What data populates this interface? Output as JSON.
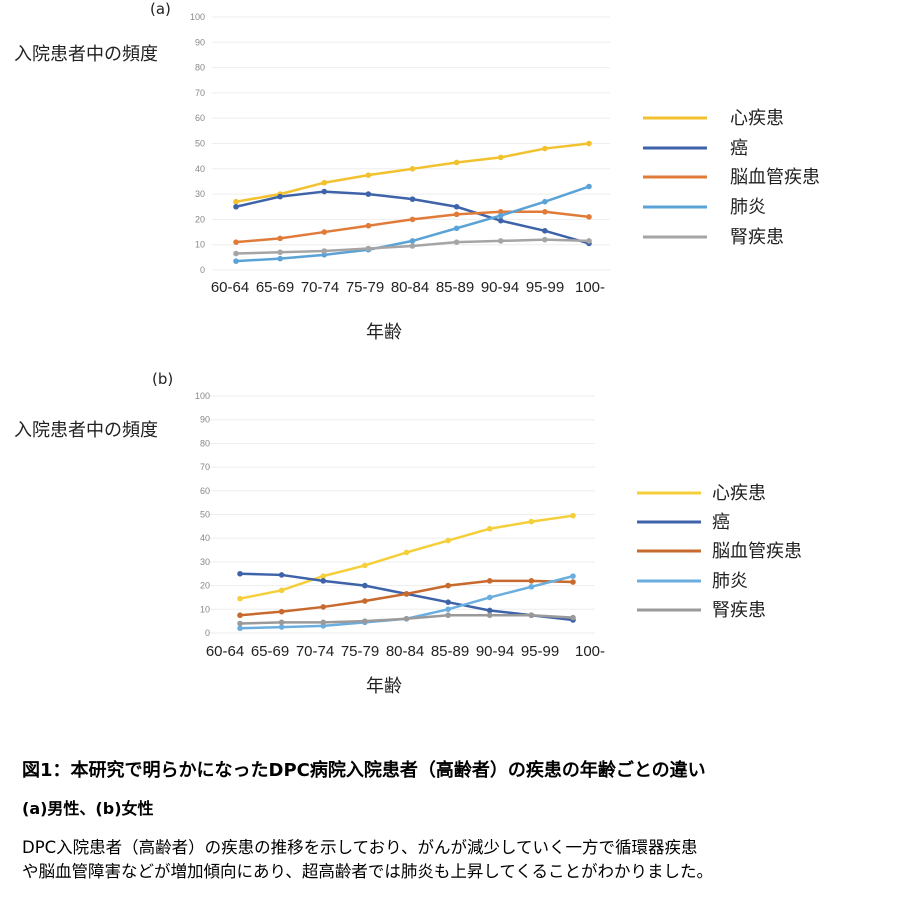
{
  "chart_data": [
    {
      "type": "line",
      "panel_label": "(a)",
      "ylabel": "入院患者中の頻度",
      "xlabel": "年齢",
      "ylim": [
        0,
        100
      ],
      "yticks": [
        0,
        10,
        20,
        30,
        40,
        50,
        60,
        70,
        80,
        90,
        100
      ],
      "grid": true,
      "legend_position": "right",
      "categories": [
        "60-64",
        "65-69",
        "70-74",
        "75-79",
        "80-84",
        "85-89",
        "90-94",
        "95-99",
        "100-"
      ],
      "series": [
        {
          "name": "心疾患",
          "color": "#f2c12e",
          "values": [
            27,
            30,
            34.5,
            37.5,
            40,
            42.5,
            44.5,
            48,
            50
          ]
        },
        {
          "name": "癌",
          "color": "#3e63a8",
          "values": [
            25,
            29,
            31,
            30,
            28,
            25,
            19.5,
            15.5,
            10.5
          ]
        },
        {
          "name": "脳血管疾患",
          "color": "#e07b39",
          "values": [
            11,
            12.5,
            15,
            17.5,
            20,
            22,
            23,
            23,
            21
          ]
        },
        {
          "name": "肺炎",
          "color": "#5ba3d6",
          "values": [
            3.5,
            4.5,
            6,
            8,
            11.5,
            16.5,
            21.5,
            27,
            33
          ]
        },
        {
          "name": "腎疾患",
          "color": "#a5a5a5",
          "values": [
            6.5,
            7,
            7.5,
            8.5,
            9.5,
            11,
            11.5,
            12,
            11.5
          ]
        }
      ]
    },
    {
      "type": "line",
      "panel_label": "(b)",
      "ylabel": "入院患者中の頻度",
      "xlabel": "年齢",
      "ylim": [
        0,
        100
      ],
      "yticks": [
        0,
        10,
        20,
        30,
        40,
        50,
        60,
        70,
        80,
        90,
        100
      ],
      "grid": true,
      "legend_position": "right",
      "categories": [
        "60-64",
        "65-69",
        "70-74",
        "75-79",
        "80-84",
        "85-89",
        "90-94",
        "95-99",
        "100-"
      ],
      "series": [
        {
          "name": "心疾患",
          "color": "#f5cf3a",
          "values": [
            14.5,
            18,
            24,
            28.5,
            34,
            39,
            44,
            47,
            49.5
          ]
        },
        {
          "name": "癌",
          "color": "#3e63a8",
          "values": [
            25,
            24.5,
            22,
            20,
            16.5,
            13,
            9.5,
            7.5,
            5.5
          ]
        },
        {
          "name": "脳血管疾患",
          "color": "#c8692e",
          "values": [
            7.5,
            9,
            11,
            13.5,
            16.5,
            20,
            22,
            22,
            21.5
          ]
        },
        {
          "name": "肺炎",
          "color": "#6aaee0",
          "values": [
            2,
            2.5,
            3,
            4.5,
            6,
            10,
            15,
            19.5,
            24
          ]
        },
        {
          "name": "腎疾患",
          "color": "#9a9a9a",
          "values": [
            4,
            4.5,
            4.5,
            5,
            6,
            7.5,
            7.5,
            7.5,
            6.5
          ]
        }
      ]
    }
  ],
  "caption": {
    "title": "図1：本研究で明らかになったDPC病院入院患者（高齢者）の疾患の年齢ごとの違い",
    "subtitle": "(a)男性、(b)女性",
    "body_line1": "DPC入院患者（高齢者）の疾患の推移を示しており、がんが減少していく一方で循環器疾患",
    "body_line2": "や脳血管障害などが増加傾向にあり、超高齢者では肺炎も上昇してくることがわかりました。"
  }
}
